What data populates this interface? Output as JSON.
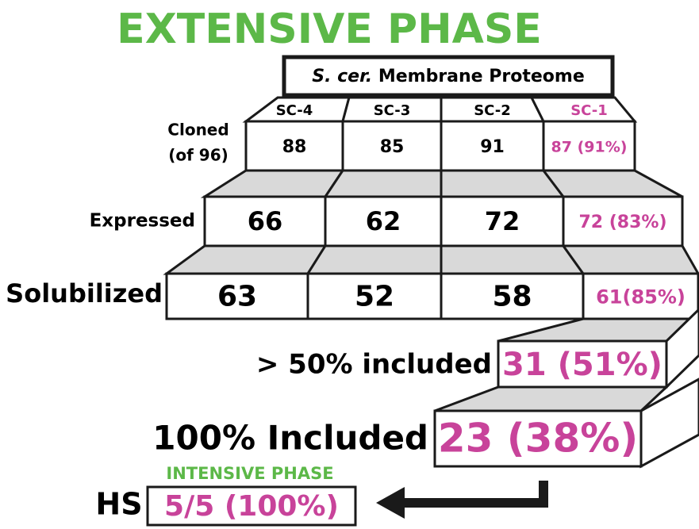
{
  "title": "EXTENSIVE PHASE",
  "header": {
    "italic": "S. cer.",
    "text": "Membrane Proteome"
  },
  "columns": [
    "SC-4",
    "SC-3",
    "SC-2",
    "SC-1"
  ],
  "rows": [
    {
      "label": [
        "Cloned",
        "(of 96)"
      ],
      "cells": [
        "88",
        "85",
        "91",
        "87 (91%)"
      ]
    },
    {
      "label": [
        "Expressed"
      ],
      "cells": [
        "66",
        "62",
        "72",
        "72 (83%)"
      ]
    },
    {
      "label": [
        "Solubilized"
      ],
      "cells": [
        "63",
        "52",
        "58",
        "61(85%)"
      ]
    }
  ],
  "steps": [
    {
      "label": "> 50% included",
      "value": "31 (51%)"
    },
    {
      "label": "100% Included",
      "value": "23 (38%)"
    }
  ],
  "intensive": {
    "title": "INTENSIVE PHASE",
    "label": "HS",
    "value": "5/5 (100%)"
  }
}
